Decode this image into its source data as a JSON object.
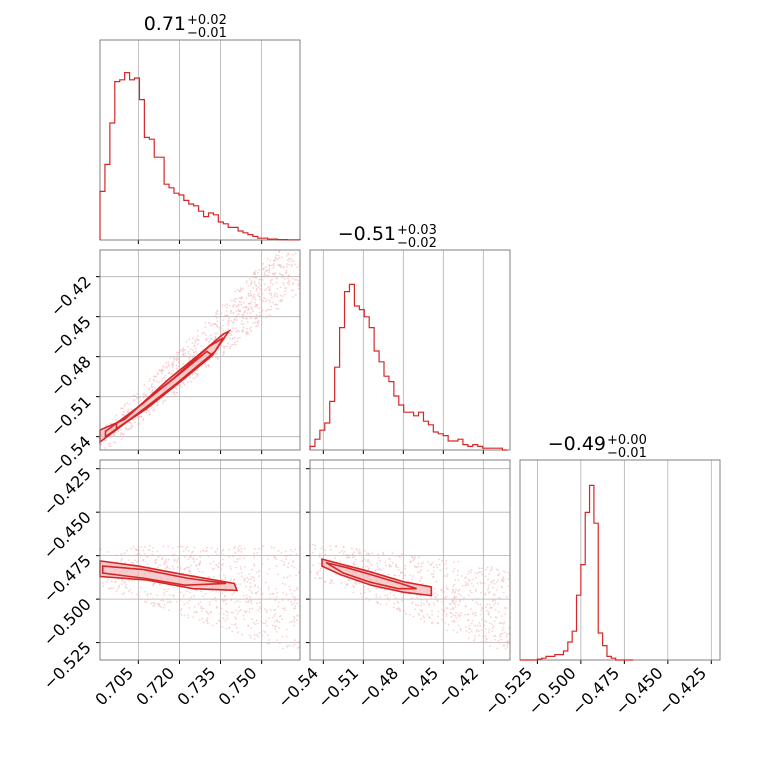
{
  "colors": {
    "accent": "#d62728",
    "fill_light": "#f4b6b8",
    "grid": "#b0b0b0",
    "frame": "#808080"
  },
  "chart_data": [
    {
      "type": "histogram",
      "parameter_index": 0,
      "title": {
        "median": "0.71",
        "plus": "+0.02",
        "minus": "−0.01"
      },
      "xlim": [
        0.691,
        0.764
      ],
      "bins": [
        0.691,
        0.6928,
        0.6946,
        0.6964,
        0.6982,
        0.7,
        0.7018,
        0.7036,
        0.7054,
        0.7072,
        0.709,
        0.7108,
        0.7126,
        0.7144,
        0.7162,
        0.718,
        0.7198,
        0.7216,
        0.7234,
        0.7252,
        0.727,
        0.7288,
        0.7306,
        0.7324,
        0.7342,
        0.736,
        0.7378,
        0.7396,
        0.7414,
        0.7432,
        0.745,
        0.7468,
        0.7486,
        0.7504,
        0.7522,
        0.754,
        0.7558,
        0.7576,
        0.7594,
        0.7612,
        0.764
      ],
      "counts": [
        0.27,
        0.42,
        0.65,
        0.88,
        0.89,
        0.93,
        0.89,
        0.9,
        0.78,
        0.57,
        0.56,
        0.46,
        0.46,
        0.31,
        0.29,
        0.26,
        0.25,
        0.22,
        0.2,
        0.19,
        0.16,
        0.13,
        0.15,
        0.14,
        0.1,
        0.09,
        0.07,
        0.07,
        0.05,
        0.04,
        0.03,
        0.02,
        0.01,
        0.01,
        0.005,
        0.005,
        0.002,
        0.002,
        0.001,
        0.001
      ],
      "xticks": [
        0.705,
        0.72,
        0.735,
        0.75
      ],
      "xticklabels": [
        "0.705",
        "0.720",
        "0.735",
        "0.750"
      ]
    },
    {
      "type": "contour-scatter",
      "position": "row 2, col 1",
      "xlim": [
        0.691,
        0.764
      ],
      "ylim": [
        -0.55,
        -0.4
      ],
      "yticks": [
        -0.42,
        -0.45,
        -0.48,
        -0.51,
        -0.54
      ],
      "yticklabels": [
        "−0.42",
        "−0.45",
        "−0.48",
        "−0.51",
        "−0.54"
      ],
      "contours": [
        [
          [
            0.691,
            -0.544
          ],
          [
            0.702,
            -0.527
          ],
          [
            0.718,
            -0.502
          ],
          [
            0.732,
            -0.479
          ],
          [
            0.738,
            -0.461
          ],
          [
            0.736,
            -0.463
          ],
          [
            0.728,
            -0.477
          ],
          [
            0.716,
            -0.497
          ],
          [
            0.7,
            -0.527
          ],
          [
            0.691,
            -0.535
          ]
        ],
        [
          [
            0.693,
            -0.54
          ],
          [
            0.704,
            -0.524
          ],
          [
            0.719,
            -0.5
          ],
          [
            0.733,
            -0.476
          ],
          [
            0.736,
            -0.466
          ],
          [
            0.731,
            -0.472
          ],
          [
            0.718,
            -0.496
          ],
          [
            0.703,
            -0.521
          ],
          [
            0.693,
            -0.536
          ]
        ],
        [
          [
            0.697,
            -0.534
          ],
          [
            0.708,
            -0.519
          ],
          [
            0.722,
            -0.496
          ],
          [
            0.732,
            -0.479
          ],
          [
            0.73,
            -0.476
          ],
          [
            0.72,
            -0.493
          ],
          [
            0.706,
            -0.516
          ],
          [
            0.697,
            -0.53
          ]
        ]
      ]
    },
    {
      "type": "histogram",
      "parameter_index": 1,
      "title": {
        "median": "−0.51",
        "plus": "+0.03",
        "minus": "−0.02"
      },
      "xlim": [
        -0.55,
        -0.4
      ],
      "bins": [
        -0.55,
        -0.5463,
        -0.5426,
        -0.5389,
        -0.5352,
        -0.5315,
        -0.5278,
        -0.5241,
        -0.5204,
        -0.5167,
        -0.513,
        -0.5093,
        -0.5056,
        -0.5019,
        -0.4982,
        -0.4945,
        -0.4908,
        -0.4871,
        -0.4834,
        -0.4797,
        -0.476,
        -0.4723,
        -0.4686,
        -0.4649,
        -0.4612,
        -0.4575,
        -0.4538,
        -0.4501,
        -0.4464,
        -0.4427,
        -0.439,
        -0.4353,
        -0.4316,
        -0.4279,
        -0.4242,
        -0.4205,
        -0.4168,
        -0.4131,
        -0.4094,
        -0.4057,
        -0.402
      ],
      "counts": [
        0.02,
        0.06,
        0.11,
        0.15,
        0.27,
        0.46,
        0.68,
        0.88,
        0.92,
        0.8,
        0.78,
        0.74,
        0.68,
        0.55,
        0.49,
        0.41,
        0.38,
        0.3,
        0.25,
        0.21,
        0.21,
        0.19,
        0.21,
        0.16,
        0.14,
        0.1,
        0.09,
        0.08,
        0.05,
        0.05,
        0.06,
        0.03,
        0.02,
        0.03,
        0.02,
        0.01,
        0.01,
        0.01,
        0.01,
        0.0
      ],
      "xticks": [
        -0.54,
        -0.51,
        -0.48,
        -0.45,
        -0.42
      ],
      "xticklabels": [
        "−0.54",
        "−0.51",
        "−0.48",
        "−0.45",
        "−0.42"
      ]
    },
    {
      "type": "contour-scatter",
      "position": "row 3, col 1",
      "xlim": [
        0.691,
        0.764
      ],
      "ylim": [
        -0.535,
        -0.42
      ],
      "yticks": [
        -0.425,
        -0.45,
        -0.475,
        -0.5,
        -0.525
      ],
      "yticklabels": [
        "−0.425",
        "−0.450",
        "−0.475",
        "−0.500",
        "−0.525"
      ],
      "contours": [
        [
          [
            0.691,
            -0.478
          ],
          [
            0.705,
            -0.481
          ],
          [
            0.722,
            -0.486
          ],
          [
            0.74,
            -0.491
          ],
          [
            0.741,
            -0.495
          ],
          [
            0.725,
            -0.494
          ],
          [
            0.708,
            -0.489
          ],
          [
            0.691,
            -0.487
          ]
        ],
        [
          [
            0.692,
            -0.481
          ],
          [
            0.707,
            -0.483
          ],
          [
            0.723,
            -0.488
          ],
          [
            0.737,
            -0.491
          ],
          [
            0.722,
            -0.492
          ],
          [
            0.707,
            -0.488
          ],
          [
            0.692,
            -0.485
          ]
        ]
      ]
    },
    {
      "type": "contour-scatter",
      "position": "row 3, col 2",
      "xlim": [
        -0.55,
        -0.4
      ],
      "ylim": [
        -0.535,
        -0.42
      ],
      "xticks": [
        -0.54,
        -0.51,
        -0.48,
        -0.45,
        -0.42
      ],
      "xticklabels": [
        "−0.54",
        "−0.51",
        "−0.48",
        "−0.45",
        "−0.42"
      ],
      "contours": [
        [
          [
            -0.541,
            -0.477
          ],
          [
            -0.526,
            -0.48
          ],
          [
            -0.506,
            -0.484
          ],
          [
            -0.48,
            -0.49
          ],
          [
            -0.459,
            -0.493
          ],
          [
            -0.459,
            -0.498
          ],
          [
            -0.48,
            -0.496
          ],
          [
            -0.504,
            -0.492
          ],
          [
            -0.527,
            -0.486
          ],
          [
            -0.541,
            -0.481
          ]
        ],
        [
          [
            -0.538,
            -0.479
          ],
          [
            -0.522,
            -0.482
          ],
          [
            -0.504,
            -0.486
          ],
          [
            -0.482,
            -0.491
          ],
          [
            -0.47,
            -0.494
          ],
          [
            -0.484,
            -0.494
          ],
          [
            -0.506,
            -0.49
          ],
          [
            -0.525,
            -0.485
          ]
        ]
      ]
    },
    {
      "type": "histogram",
      "parameter_index": 2,
      "title": {
        "median": "−0.49",
        "plus": "+0.00",
        "minus": "−0.01"
      },
      "xlim": [
        -0.535,
        -0.42
      ],
      "bins": [
        -0.535,
        -0.5325,
        -0.53,
        -0.5275,
        -0.525,
        -0.5225,
        -0.52,
        -0.5175,
        -0.515,
        -0.5125,
        -0.51,
        -0.5075,
        -0.505,
        -0.5025,
        -0.5,
        -0.4975,
        -0.495,
        -0.4925,
        -0.49,
        -0.4875,
        -0.485,
        -0.4825,
        -0.48,
        -0.4775,
        -0.475,
        -0.4725,
        -0.47
      ],
      "counts": [
        0.0,
        0.0,
        0.0,
        0.0,
        0.005,
        0.01,
        0.02,
        0.02,
        0.03,
        0.03,
        0.05,
        0.1,
        0.16,
        0.36,
        0.53,
        0.82,
        0.97,
        0.76,
        0.15,
        0.08,
        0.02,
        0.01,
        0.0,
        0.0,
        0.0,
        0.0
      ],
      "xticks": [
        -0.525,
        -0.5,
        -0.475,
        -0.45,
        -0.425
      ],
      "xticklabels": [
        "−0.525",
        "−0.500",
        "−0.475",
        "−0.450",
        "−0.425"
      ]
    }
  ]
}
